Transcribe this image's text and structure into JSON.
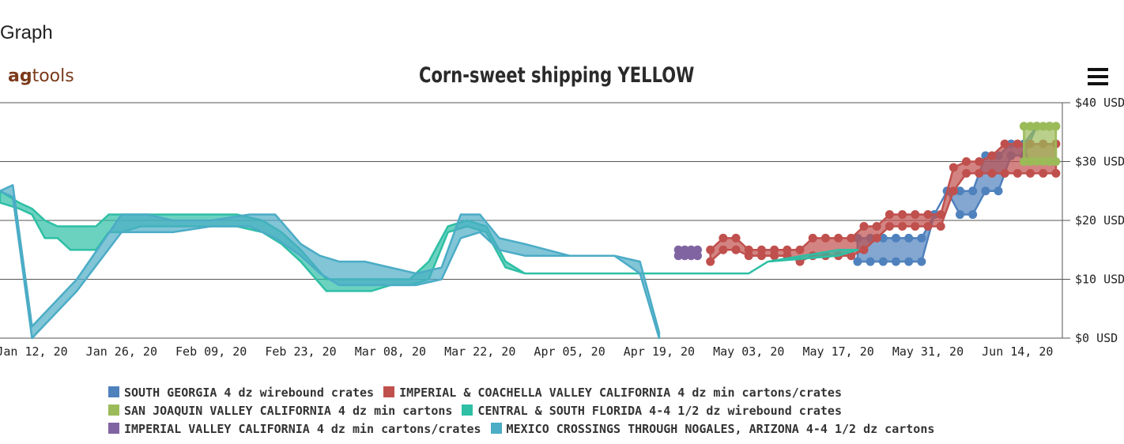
{
  "page_heading": "Graph",
  "logo": {
    "prefix": "ag",
    "suffix": "tools"
  },
  "menu_icon": "hamburger-menu-icon",
  "chart_data": {
    "type": "area",
    "title": "Corn-sweet shipping YELLOW",
    "xlabel": "",
    "ylabel": "",
    "ylim": [
      0,
      40
    ],
    "yticks": [
      "$0 USD",
      "$10 USD",
      "$20 USD",
      "$30 USD",
      "$40 USD"
    ],
    "y_tick_values": [
      0,
      10,
      20,
      30,
      40
    ],
    "x_domain": [
      "2020-01-07",
      "2020-06-21"
    ],
    "xticks": [
      "Jan 12, 20",
      "Jan 26, 20",
      "Feb 09, 20",
      "Feb 23, 20",
      "Mar 08, 20",
      "Mar 22, 20",
      "Apr 05, 20",
      "Apr 19, 20",
      "May 03, 20",
      "May 17, 20",
      "May 31, 20",
      "Jun 14, 20"
    ],
    "x_tick_dates": [
      "2020-01-12",
      "2020-01-26",
      "2020-02-09",
      "2020-02-23",
      "2020-03-08",
      "2020-03-22",
      "2020-04-05",
      "2020-04-19",
      "2020-05-03",
      "2020-05-17",
      "2020-05-31",
      "2020-06-14"
    ],
    "grid": true,
    "legend_position": "bottom",
    "series": [
      {
        "name": "SOUTH GEORGIA 4 dz wirebound crates",
        "color": "#4f81bd",
        "markers": true,
        "points": [
          [
            "2020-05-20",
            13,
            17
          ],
          [
            "2020-05-22",
            13,
            17
          ],
          [
            "2020-05-24",
            13,
            17
          ],
          [
            "2020-05-26",
            13,
            17
          ],
          [
            "2020-05-28",
            13,
            17
          ],
          [
            "2020-05-30",
            13,
            17
          ],
          [
            "2020-06-01",
            21,
            21
          ],
          [
            "2020-06-03",
            25,
            25
          ],
          [
            "2020-06-05",
            21,
            25
          ],
          [
            "2020-06-07",
            21,
            25
          ],
          [
            "2020-06-09",
            25,
            31
          ],
          [
            "2020-06-11",
            25,
            31
          ],
          [
            "2020-06-13",
            31,
            33
          ],
          [
            "2020-06-15",
            31,
            33
          ],
          [
            "2020-06-17",
            36,
            36
          ],
          [
            "2020-06-19",
            36,
            36
          ]
        ]
      },
      {
        "name": "IMPERIAL & COACHELLA VALLEY CALIFORNIA 4 dz min cartons/crates",
        "color": "#c0504d",
        "markers": true,
        "points": [
          [
            "2020-04-27",
            13,
            15
          ],
          [
            "2020-04-29",
            15,
            17
          ],
          [
            "2020-05-01",
            15,
            17
          ],
          [
            "2020-05-03",
            14,
            15
          ],
          [
            "2020-05-05",
            14,
            15
          ],
          [
            "2020-05-07",
            14,
            15
          ],
          [
            "2020-05-09",
            14,
            15
          ],
          [
            "2020-05-11",
            13,
            15
          ],
          [
            "2020-05-13",
            14,
            17
          ],
          [
            "2020-05-15",
            14,
            17
          ],
          [
            "2020-05-17",
            14,
            17
          ],
          [
            "2020-05-19",
            14,
            17
          ],
          [
            "2020-05-21",
            15,
            19
          ],
          [
            "2020-05-23",
            17,
            19
          ],
          [
            "2020-05-25",
            19,
            21
          ],
          [
            "2020-05-27",
            19,
            21
          ],
          [
            "2020-05-29",
            19,
            21
          ],
          [
            "2020-05-31",
            19,
            21
          ],
          [
            "2020-06-02",
            19,
            21
          ],
          [
            "2020-06-04",
            25,
            29
          ],
          [
            "2020-06-06",
            28,
            30
          ],
          [
            "2020-06-08",
            28,
            30
          ],
          [
            "2020-06-10",
            28,
            31
          ],
          [
            "2020-06-12",
            28,
            33
          ],
          [
            "2020-06-14",
            28,
            33
          ],
          [
            "2020-06-16",
            28,
            33
          ],
          [
            "2020-06-18",
            28,
            33
          ],
          [
            "2020-06-20",
            28,
            33
          ]
        ]
      },
      {
        "name": "SAN JOAQUIN VALLEY CALIFORNIA 4 dz min cartons",
        "color": "#9bbb59",
        "markers": true,
        "points": [
          [
            "2020-06-15",
            30,
            36
          ],
          [
            "2020-06-16",
            30,
            36
          ],
          [
            "2020-06-17",
            30,
            36
          ],
          [
            "2020-06-18",
            30,
            36
          ],
          [
            "2020-06-19",
            30,
            36
          ],
          [
            "2020-06-20",
            30,
            36
          ]
        ]
      },
      {
        "name": "CENTRAL & SOUTH FLORIDA 4-4 1/2 dz wirebound crates",
        "color": "#2ebfa5",
        "markers": false,
        "points": [
          [
            "2020-01-07",
            23,
            25
          ],
          [
            "2020-01-10",
            22,
            23
          ],
          [
            "2020-01-12",
            21,
            22
          ],
          [
            "2020-01-14",
            17,
            20
          ],
          [
            "2020-01-16",
            17,
            19
          ],
          [
            "2020-01-18",
            15,
            19
          ],
          [
            "2020-01-20",
            15,
            19
          ],
          [
            "2020-01-22",
            15,
            19
          ],
          [
            "2020-01-24",
            18,
            21
          ],
          [
            "2020-01-26",
            18,
            21
          ],
          [
            "2020-01-29",
            19,
            21
          ],
          [
            "2020-02-01",
            19,
            21
          ],
          [
            "2020-02-05",
            19,
            21
          ],
          [
            "2020-02-09",
            19,
            21
          ],
          [
            "2020-02-13",
            19,
            21
          ],
          [
            "2020-02-17",
            18,
            20
          ],
          [
            "2020-02-20",
            16,
            18
          ],
          [
            "2020-02-23",
            13,
            15
          ],
          [
            "2020-02-27",
            8,
            10
          ],
          [
            "2020-03-01",
            8,
            10
          ],
          [
            "2020-03-05",
            8,
            10
          ],
          [
            "2020-03-08",
            9,
            10
          ],
          [
            "2020-03-11",
            9,
            10
          ],
          [
            "2020-03-14",
            10,
            13
          ],
          [
            "2020-03-17",
            18,
            19
          ],
          [
            "2020-03-20",
            19,
            20
          ],
          [
            "2020-03-23",
            18,
            19
          ],
          [
            "2020-03-26",
            12,
            13
          ],
          [
            "2020-03-29",
            11,
            11
          ],
          [
            "2020-04-05",
            11,
            11
          ],
          [
            "2020-04-15",
            11,
            11
          ],
          [
            "2020-04-25",
            11,
            11
          ],
          [
            "2020-05-03",
            11,
            11
          ],
          [
            "2020-05-06",
            13,
            13
          ],
          [
            "2020-05-17",
            14,
            15
          ],
          [
            "2020-05-20",
            15,
            15
          ]
        ]
      },
      {
        "name": "IMPERIAL VALLEY CALIFORNIA 4 dz min cartons/crates",
        "color": "#8064a2",
        "markers": true,
        "points": [
          [
            "2020-04-22",
            14,
            15
          ],
          [
            "2020-04-23",
            14,
            15
          ],
          [
            "2020-04-24",
            14,
            15
          ],
          [
            "2020-04-25",
            14,
            15
          ]
        ]
      },
      {
        "name": "MEXICO CROSSINGS THROUGH NOGALES, ARIZONA 4-4 1/2 dz cartons",
        "color": "#4bacc6",
        "markers": false,
        "points": [
          [
            "2020-01-07",
            25,
            25
          ],
          [
            "2020-01-09",
            24,
            26
          ],
          [
            "2020-01-12",
            0,
            2
          ],
          [
            "2020-01-19",
            8,
            10
          ],
          [
            "2020-01-26",
            18,
            21
          ],
          [
            "2020-01-30",
            18,
            21
          ],
          [
            "2020-02-03",
            18,
            20
          ],
          [
            "2020-02-09",
            19,
            20
          ],
          [
            "2020-02-15",
            19,
            21
          ],
          [
            "2020-02-19",
            17,
            21
          ],
          [
            "2020-02-23",
            14,
            16
          ],
          [
            "2020-02-26",
            11,
            14
          ],
          [
            "2020-02-29",
            9,
            13
          ],
          [
            "2020-03-04",
            9,
            13
          ],
          [
            "2020-03-08",
            9,
            12
          ],
          [
            "2020-03-12",
            9,
            11
          ],
          [
            "2020-03-16",
            10,
            12
          ],
          [
            "2020-03-19",
            17,
            21
          ],
          [
            "2020-03-22",
            18,
            21
          ],
          [
            "2020-03-25",
            15,
            17
          ],
          [
            "2020-03-29",
            14,
            16
          ],
          [
            "2020-04-05",
            14,
            14
          ],
          [
            "2020-04-12",
            14,
            14
          ],
          [
            "2020-04-16",
            11,
            13
          ],
          [
            "2020-04-19",
            0,
            1
          ]
        ]
      }
    ]
  }
}
